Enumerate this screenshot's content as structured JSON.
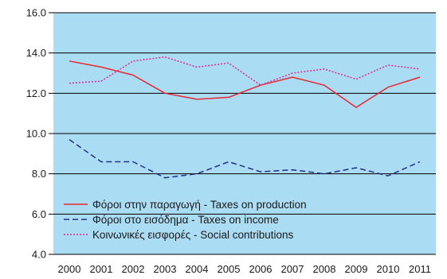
{
  "chart_data": {
    "type": "line",
    "title": "",
    "xlabel": "",
    "ylabel": "",
    "ylim": [
      4.0,
      16.0
    ],
    "y_ticks": [
      "4.0",
      "6.0",
      "8.0",
      "10.0",
      "12.0",
      "14.0",
      "16.0"
    ],
    "categories": [
      "2000",
      "2001",
      "2002",
      "2003",
      "2004",
      "2005",
      "2006",
      "2007",
      "2008",
      "2009",
      "2010",
      "2011"
    ],
    "grid": "horizontal",
    "background_color": "#aadcf3",
    "legend_position": "bottom-left",
    "series": [
      {
        "name": "Φόροι στην παραγωγή - Taxes on production",
        "color": "#e8262f",
        "style": "solid",
        "values": [
          13.6,
          13.3,
          12.9,
          12.0,
          11.7,
          11.8,
          12.4,
          12.8,
          12.4,
          11.3,
          12.3,
          12.8
        ]
      },
      {
        "name": "Φόροι στο εισόδημα - Taxes on income",
        "color": "#23318a",
        "style": "dashed",
        "values": [
          9.7,
          8.6,
          8.6,
          7.8,
          8.0,
          8.6,
          8.1,
          8.2,
          8.0,
          8.3,
          7.9,
          8.6
        ]
      },
      {
        "name": "Κοινωνικές εισφορές - Social contributions",
        "color": "#e0289b",
        "style": "dotted",
        "values": [
          12.5,
          12.6,
          13.6,
          13.8,
          13.3,
          13.5,
          12.4,
          13.0,
          13.2,
          12.7,
          13.4,
          13.2
        ]
      }
    ]
  }
}
